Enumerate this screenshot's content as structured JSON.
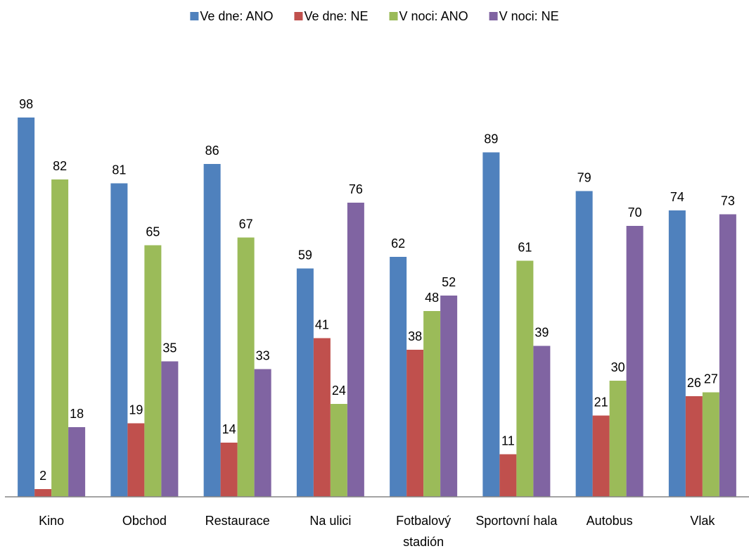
{
  "chart_data": {
    "type": "bar",
    "categories": [
      "Kino",
      "Obchod",
      "Restaurace",
      "Na ulici",
      "Fotbalový stadión",
      "Sportovní hala",
      "Autobus",
      "Vlak"
    ],
    "series": [
      {
        "name": "Ve dne: ANO",
        "color": "#4f81bd",
        "values": [
          98,
          81,
          86,
          59,
          62,
          89,
          79,
          74
        ]
      },
      {
        "name": "Ve dne: NE",
        "color": "#c0504d",
        "values": [
          2,
          19,
          14,
          41,
          38,
          11,
          21,
          26
        ]
      },
      {
        "name": "V noci: ANO",
        "color": "#9bbb59",
        "values": [
          82,
          65,
          67,
          24,
          48,
          61,
          30,
          27
        ]
      },
      {
        "name": "V noci: NE",
        "color": "#8064a2",
        "values": [
          18,
          35,
          33,
          76,
          52,
          39,
          70,
          73
        ]
      }
    ],
    "ylim": [
      0,
      100
    ],
    "legend": "top"
  }
}
